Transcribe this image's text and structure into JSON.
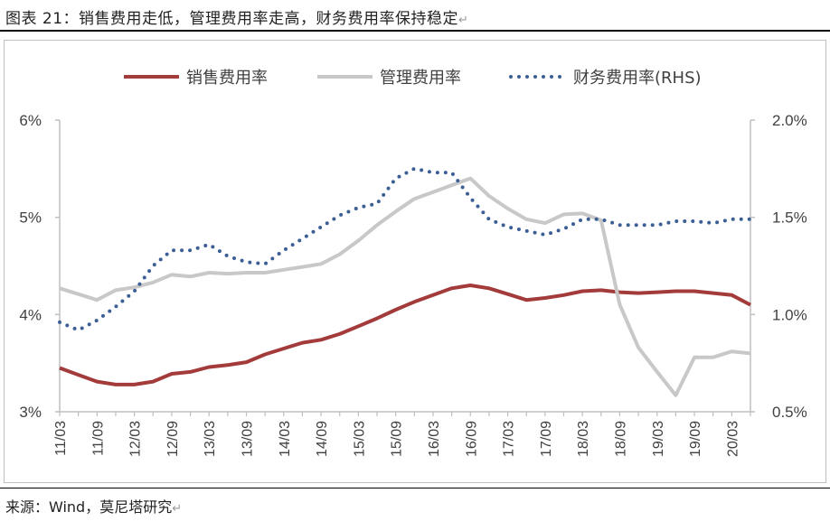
{
  "figure": {
    "title": "图表 21：销售费用走低，管理费用率走高，财务费用率保持稳定",
    "source": "来源：Wind，莫尼塔研究",
    "return_mark": "↵"
  },
  "colors": {
    "sales": "#a33b3b",
    "admin": "#c8c8c8",
    "finance": "#3b5f95",
    "axis": "#bfbfbf",
    "text": "#404040"
  },
  "chart_data": {
    "type": "line",
    "title": "",
    "xlabel": "",
    "ylabel": "",
    "categories": [
      "11/03",
      "11/06",
      "11/09",
      "11/12",
      "12/03",
      "12/06",
      "12/09",
      "12/12",
      "13/03",
      "13/06",
      "13/09",
      "13/12",
      "14/03",
      "14/06",
      "14/09",
      "14/12",
      "15/03",
      "15/06",
      "15/09",
      "15/12",
      "16/03",
      "16/06",
      "16/09",
      "16/12",
      "17/03",
      "17/06",
      "17/09",
      "17/12",
      "18/03",
      "18/06",
      "18/09",
      "18/12",
      "19/03",
      "19/06",
      "19/09",
      "19/12",
      "20/03",
      "20/06"
    ],
    "x_tick_labels": [
      "11/03",
      "11/09",
      "12/03",
      "12/09",
      "13/03",
      "13/09",
      "14/03",
      "14/09",
      "15/03",
      "15/09",
      "16/03",
      "16/09",
      "17/03",
      "17/09",
      "18/03",
      "18/09",
      "19/03",
      "19/09",
      "20/03"
    ],
    "ylim_left": [
      3,
      6
    ],
    "yticks_left": [
      "3%",
      "4%",
      "5%",
      "6%"
    ],
    "ylim_right": [
      0.5,
      2.0
    ],
    "yticks_right": [
      "0.5%",
      "1.0%",
      "1.5%",
      "2.0%"
    ],
    "legend_position": "top",
    "series": [
      {
        "name": "销售费用率",
        "axis": "left",
        "style": "solid",
        "values": [
          3.45,
          3.38,
          3.31,
          3.28,
          3.28,
          3.31,
          3.39,
          3.41,
          3.46,
          3.48,
          3.51,
          3.59,
          3.65,
          3.71,
          3.74,
          3.8,
          3.88,
          3.96,
          4.05,
          4.13,
          4.2,
          4.27,
          4.3,
          4.27,
          4.21,
          4.15,
          4.17,
          4.2,
          4.24,
          4.25,
          4.23,
          4.22,
          4.23,
          4.24,
          4.24,
          4.22,
          4.2,
          4.1
        ]
      },
      {
        "name": "管理费用率",
        "axis": "left",
        "style": "solid",
        "values": [
          4.27,
          4.21,
          4.15,
          4.25,
          4.28,
          4.33,
          4.41,
          4.39,
          4.43,
          4.42,
          4.43,
          4.43,
          4.46,
          4.49,
          4.52,
          4.62,
          4.76,
          4.92,
          5.06,
          5.19,
          5.26,
          5.33,
          5.4,
          5.22,
          5.09,
          4.98,
          4.94,
          5.03,
          5.04,
          4.97,
          4.1,
          3.66,
          3.41,
          3.17,
          3.56,
          3.56,
          3.62,
          3.6
        ]
      },
      {
        "name": "财务费用率(RHS)",
        "axis": "right",
        "style": "dotted",
        "values": [
          0.96,
          0.92,
          0.97,
          1.04,
          1.12,
          1.25,
          1.33,
          1.33,
          1.36,
          1.3,
          1.27,
          1.26,
          1.33,
          1.39,
          1.45,
          1.51,
          1.55,
          1.57,
          1.7,
          1.75,
          1.73,
          1.73,
          1.6,
          1.49,
          1.45,
          1.43,
          1.41,
          1.44,
          1.49,
          1.49,
          1.46,
          1.46,
          1.46,
          1.48,
          1.48,
          1.47,
          1.49,
          1.49
        ]
      }
    ]
  }
}
